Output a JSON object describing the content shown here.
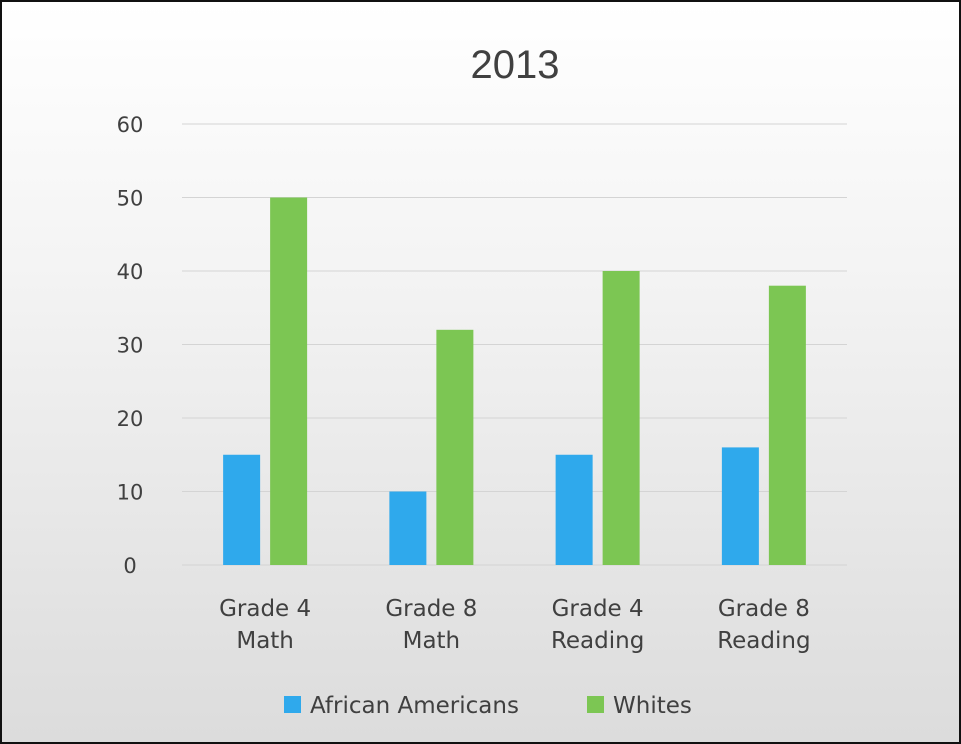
{
  "chart_data": {
    "type": "bar",
    "title": "2013",
    "xlabel": "",
    "ylabel": "",
    "categories": [
      [
        "Grade 4",
        "Math"
      ],
      [
        "Grade 8",
        "Math"
      ],
      [
        "Grade 4",
        "Reading"
      ],
      [
        "Grade 8",
        "Reading"
      ]
    ],
    "series": [
      {
        "name": "African Americans",
        "values": [
          15,
          10,
          15,
          16
        ],
        "color": "#2fa9ec"
      },
      {
        "name": "Whites",
        "values": [
          50,
          32,
          40,
          38
        ],
        "color": "#7cc653"
      }
    ],
    "yticks": [
      "0",
      "10",
      "20",
      "30",
      "40",
      "50",
      "60"
    ],
    "ylim": [
      0,
      60
    ],
    "grid": true,
    "legend_position": "bottom"
  }
}
